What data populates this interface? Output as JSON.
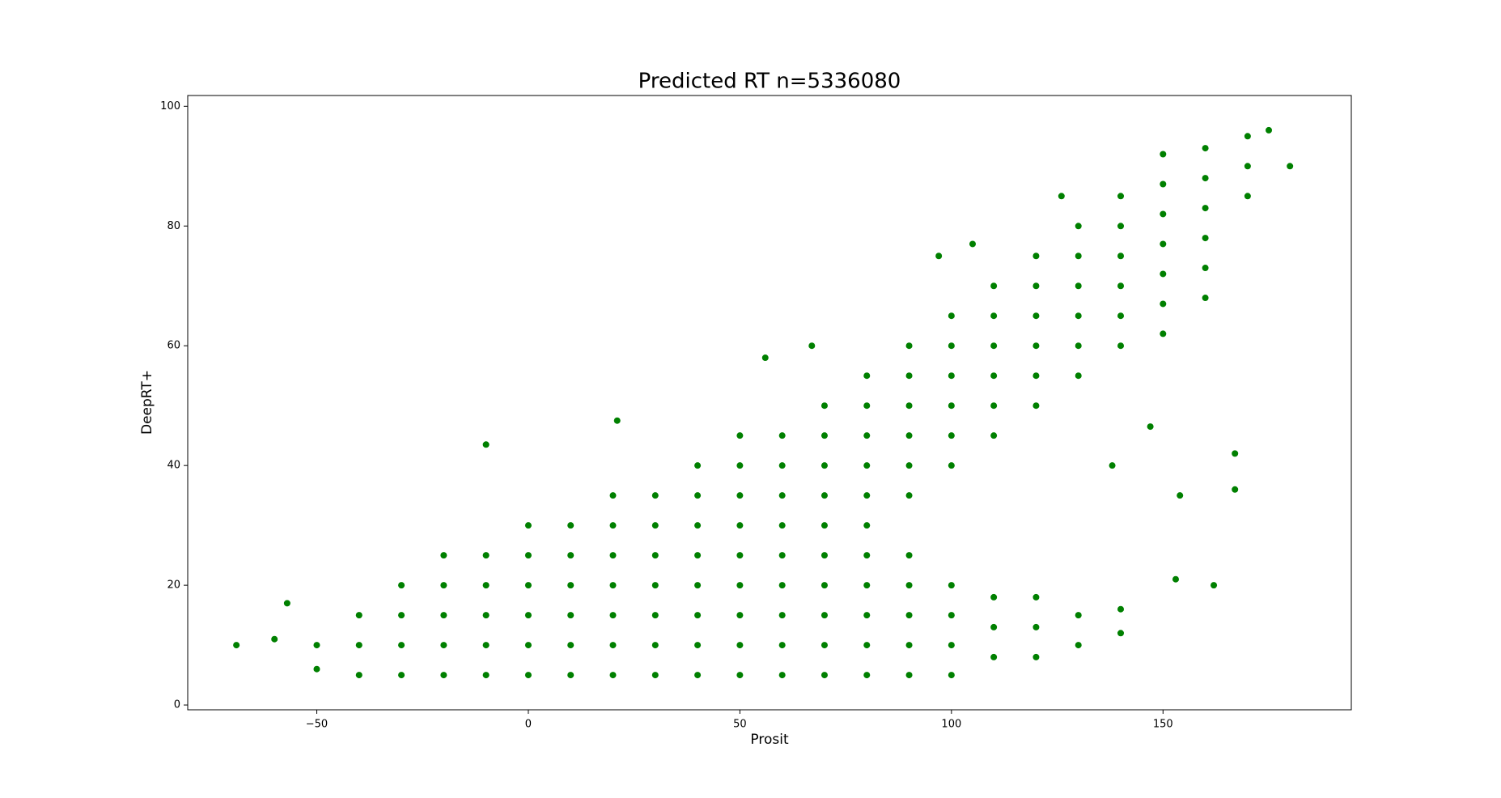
{
  "chart_data": {
    "type": "scatter",
    "title": "Predicted RT n=5336080",
    "x_label": "Prosit",
    "y_label": "DeepRT+",
    "color": "#008000",
    "x": [
      -50,
      -50,
      -40,
      -40,
      -40,
      -30,
      -30,
      -30,
      -30,
      -20,
      -20,
      -20,
      -20,
      -20,
      -10,
      -10,
      -10,
      -10,
      -10,
      0,
      0,
      0,
      0,
      0,
      0,
      10,
      10,
      10,
      10,
      10,
      10,
      20,
      20,
      20,
      20,
      20,
      20,
      20,
      30,
      30,
      30,
      30,
      30,
      30,
      30,
      40,
      40,
      40,
      40,
      40,
      40,
      40,
      40,
      50,
      50,
      50,
      50,
      50,
      50,
      50,
      50,
      50,
      60,
      60,
      60,
      60,
      60,
      60,
      60,
      60,
      60,
      70,
      70,
      70,
      70,
      70,
      70,
      70,
      70,
      70,
      70,
      80,
      80,
      80,
      80,
      80,
      80,
      80,
      80,
      80,
      80,
      80,
      90,
      90,
      90,
      90,
      90,
      90,
      90,
      90,
      90,
      90,
      90,
      100,
      100,
      100,
      100,
      100,
      100,
      100,
      100,
      100,
      100,
      110,
      110,
      110,
      110,
      110,
      110,
      110,
      110,
      110,
      120,
      120,
      120,
      120,
      120,
      120,
      120,
      120,
      120,
      130,
      130,
      130,
      130,
      130,
      130,
      130,
      130,
      140,
      140,
      140,
      140,
      140,
      140,
      140,
      140,
      150,
      150,
      150,
      150,
      150,
      150,
      150,
      160,
      160,
      160,
      160,
      160,
      160,
      170,
      170,
      170,
      175,
      -69,
      -60,
      -57,
      -10,
      21,
      67,
      56,
      97,
      126,
      105,
      147,
      154,
      167,
      167,
      138,
      180,
      162,
      153
    ],
    "y": [
      6,
      10,
      5,
      10,
      15,
      5,
      10,
      15,
      20,
      5,
      10,
      15,
      20,
      25,
      5,
      10,
      15,
      20,
      25,
      5,
      10,
      15,
      20,
      25,
      30,
      5,
      10,
      15,
      20,
      25,
      30,
      5,
      10,
      15,
      20,
      25,
      30,
      35,
      5,
      10,
      15,
      20,
      25,
      30,
      35,
      5,
      10,
      15,
      20,
      25,
      30,
      35,
      40,
      5,
      10,
      15,
      20,
      25,
      30,
      35,
      40,
      45,
      5,
      10,
      15,
      20,
      25,
      30,
      35,
      40,
      45,
      5,
      10,
      15,
      20,
      25,
      30,
      35,
      40,
      45,
      50,
      5,
      10,
      15,
      20,
      25,
      30,
      35,
      40,
      45,
      50,
      55,
      5,
      10,
      15,
      20,
      25,
      35,
      40,
      45,
      50,
      55,
      60,
      5,
      10,
      15,
      20,
      40,
      45,
      50,
      55,
      60,
      65,
      8,
      13,
      18,
      45,
      50,
      55,
      60,
      65,
      70,
      8,
      13,
      18,
      50,
      55,
      60,
      65,
      70,
      75,
      10,
      15,
      55,
      60,
      65,
      70,
      75,
      80,
      12,
      16,
      60,
      65,
      70,
      75,
      80,
      85,
      62,
      67,
      72,
      77,
      82,
      87,
      92,
      68,
      73,
      78,
      83,
      88,
      93,
      85,
      90,
      95,
      96,
      10,
      11,
      17,
      43.5,
      47.5,
      60,
      58,
      75,
      85,
      77,
      46.5,
      35,
      42,
      36,
      40,
      90,
      20,
      21
    ],
    "xlim": [
      -80.5,
      194.5
    ],
    "ylim": [
      -0.8,
      101.8
    ],
    "xticks": [
      {
        "value": -50,
        "label": "−50"
      },
      0,
      50,
      100,
      150
    ],
    "yticks": [
      0,
      20,
      40,
      60,
      80,
      100
    ]
  }
}
